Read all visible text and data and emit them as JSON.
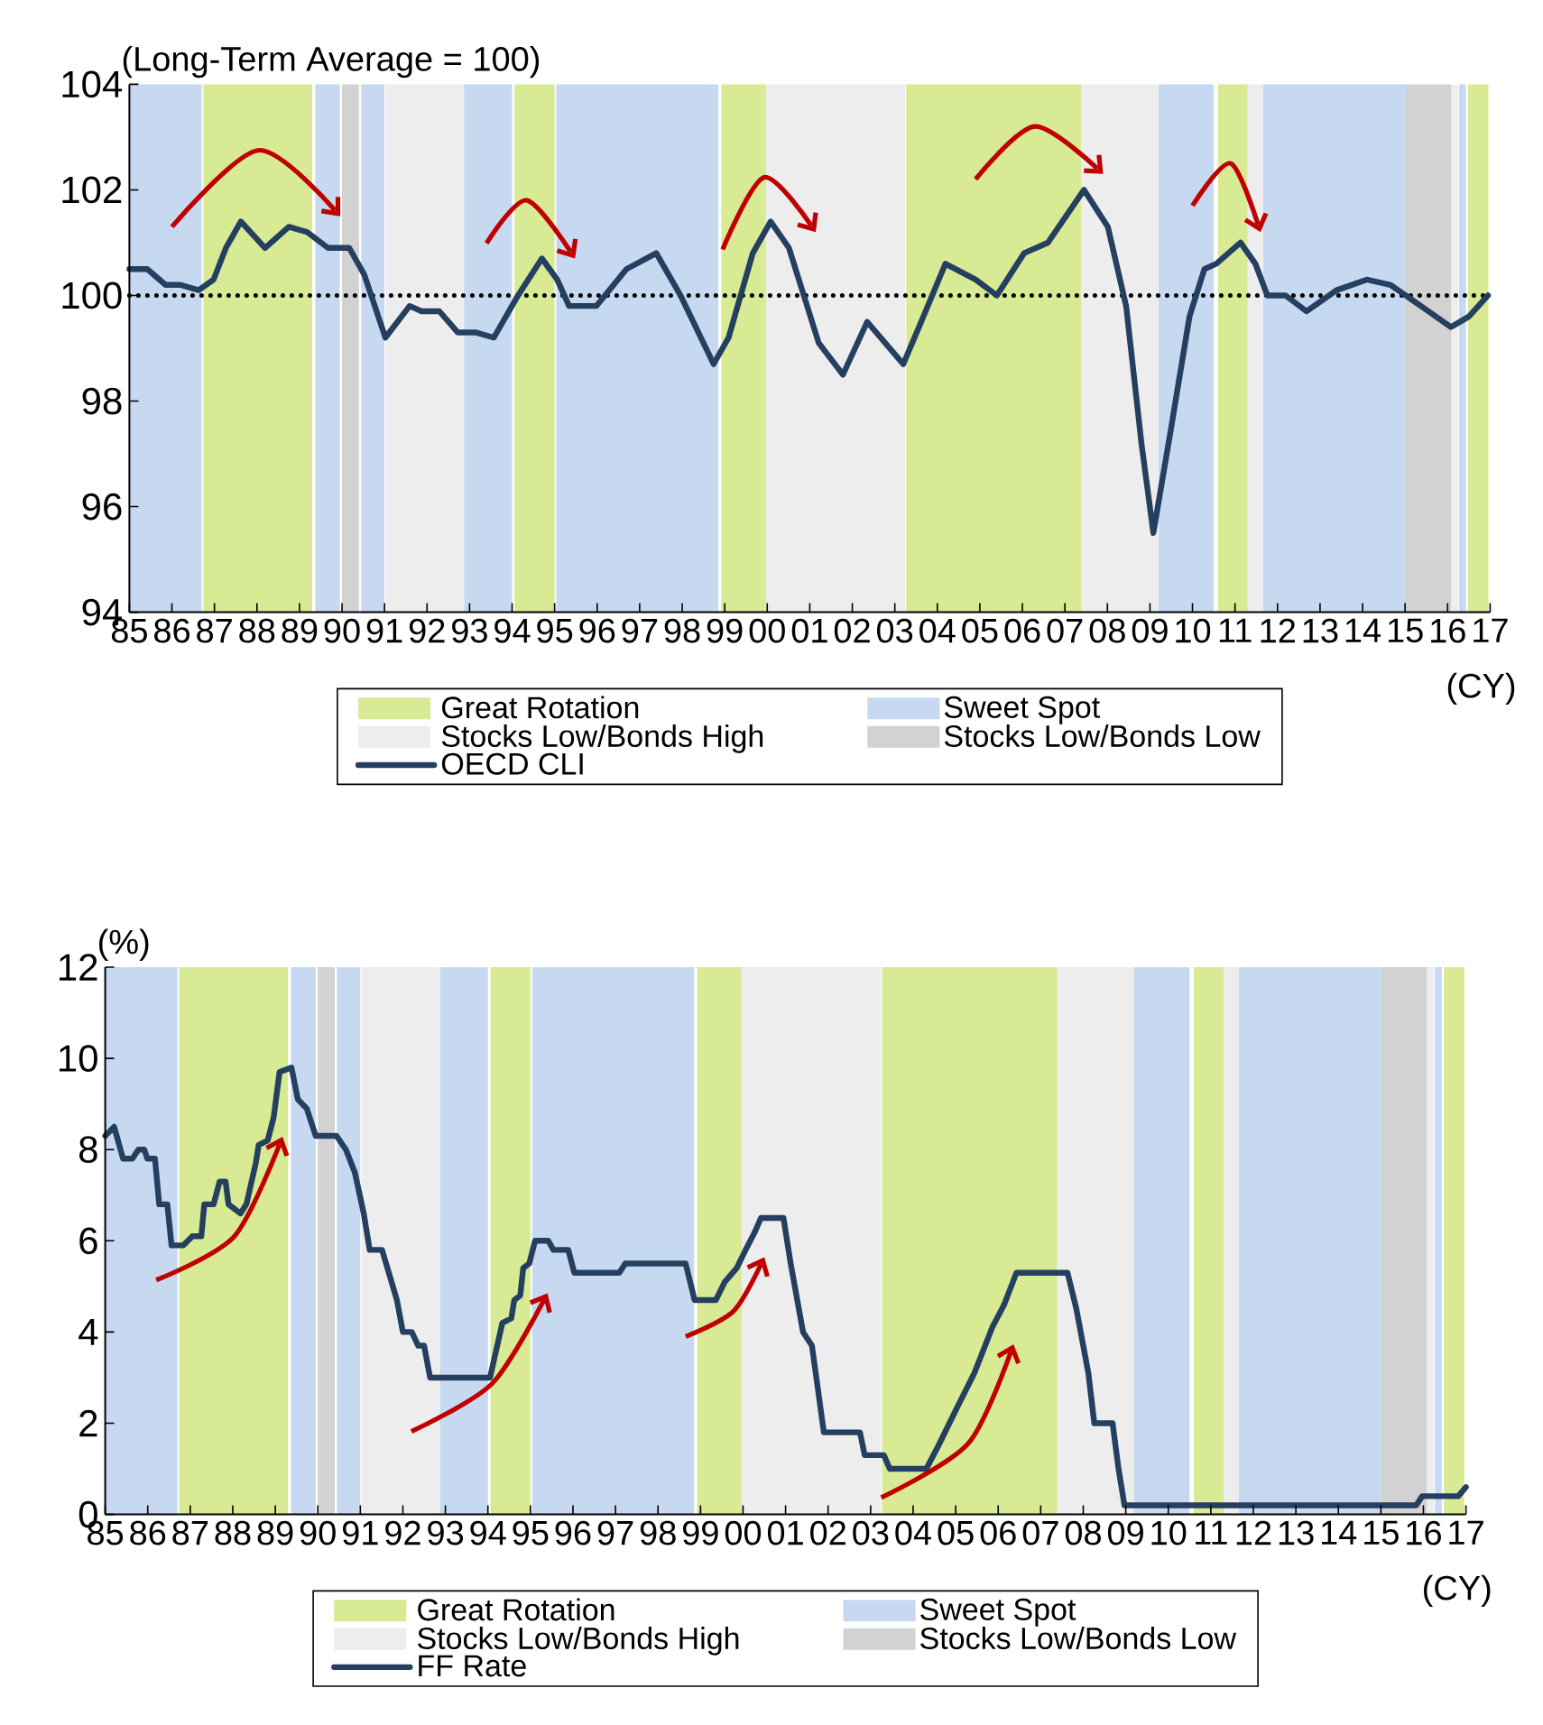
{
  "chart_data": [
    {
      "type": "line",
      "ylabel": "(Long-Term Average = 100)",
      "xlabel": "(CY)",
      "xlim": [
        1985,
        2017
      ],
      "xticks": [
        {
          "value": 1985,
          "label": "85"
        },
        {
          "value": 1986,
          "label": "86"
        },
        {
          "value": 1987,
          "label": "87"
        },
        {
          "value": 1988,
          "label": "88"
        },
        {
          "value": 1989,
          "label": "89"
        },
        {
          "value": 1990,
          "label": "90"
        },
        {
          "value": 1991,
          "label": "91"
        },
        {
          "value": 1992,
          "label": "92"
        },
        {
          "value": 1993,
          "label": "93"
        },
        {
          "value": 1994,
          "label": "94"
        },
        {
          "value": 1995,
          "label": "95"
        },
        {
          "value": 1996,
          "label": "96"
        },
        {
          "value": 1997,
          "label": "97"
        },
        {
          "value": 1998,
          "label": "98"
        },
        {
          "value": 1999,
          "label": "99"
        },
        {
          "value": 2000,
          "label": "00"
        },
        {
          "value": 2001,
          "label": "01"
        },
        {
          "value": 2002,
          "label": "02"
        },
        {
          "value": 2003,
          "label": "03"
        },
        {
          "value": 2004,
          "label": "04"
        },
        {
          "value": 2005,
          "label": "05"
        },
        {
          "value": 2006,
          "label": "06"
        },
        {
          "value": 2007,
          "label": "07"
        },
        {
          "value": 2008,
          "label": "08"
        },
        {
          "value": 2009,
          "label": "09"
        },
        {
          "value": 2010,
          "label": "10"
        },
        {
          "value": 2011,
          "label": "11"
        },
        {
          "value": 2012,
          "label": "12"
        },
        {
          "value": 2013,
          "label": "13"
        },
        {
          "value": 2014,
          "label": "14"
        },
        {
          "value": 2015,
          "label": "15"
        },
        {
          "value": 2016,
          "label": "16"
        },
        {
          "value": 2017,
          "label": "17"
        }
      ],
      "ylim": [
        94,
        104
      ],
      "yticks": [
        94,
        96,
        98,
        100,
        102,
        104
      ],
      "legend": "bottom",
      "series": [
        {
          "name": "OECD CLI",
          "color": "#243f60",
          "x": [
            1985.0,
            1985.42,
            1985.85,
            1986.2,
            1986.63,
            1986.98,
            1987.27,
            1987.62,
            1988.19,
            1988.75,
            1989.18,
            1989.67,
            1990.17,
            1990.52,
            1991.02,
            1991.59,
            1991.87,
            1992.29,
            1992.72,
            1993.14,
            1993.57,
            1994.14,
            1994.7,
            1995.06,
            1995.34,
            1995.98,
            1996.69,
            1997.39,
            1997.96,
            1998.74,
            1999.09,
            1999.66,
            2000.08,
            2000.51,
            2001.21,
            2001.78,
            2002.35,
            2003.2,
            2003.62,
            2004.19,
            2004.9,
            2005.4,
            2006.04,
            2006.6,
            2007.45,
            2008.01,
            2008.44,
            2008.8,
            2009.08,
            2009.5,
            2009.93,
            2010.28,
            2010.56,
            2011.13,
            2011.48,
            2011.76,
            2012.19,
            2012.68,
            2013.39,
            2014.1,
            2014.66,
            2015.37,
            2016.08,
            2016.5,
            2016.95
          ],
          "values": [
            100.5,
            100.5,
            100.2,
            100.2,
            100.1,
            100.3,
            100.9,
            101.4,
            100.9,
            101.3,
            101.2,
            100.9,
            100.9,
            100.4,
            99.2,
            99.8,
            99.7,
            99.7,
            99.3,
            99.3,
            99.2,
            100.0,
            100.7,
            100.3,
            99.8,
            99.8,
            100.5,
            100.8,
            100.0,
            98.7,
            99.2,
            100.8,
            101.4,
            100.9,
            99.1,
            98.5,
            99.5,
            98.7,
            99.5,
            100.6,
            100.3,
            100.0,
            100.8,
            101.0,
            102.0,
            101.3,
            99.8,
            97.2,
            95.5,
            97.5,
            99.6,
            100.5,
            100.6,
            101.0,
            100.6,
            100.0,
            100.0,
            99.7,
            100.1,
            100.3,
            100.2,
            99.8,
            99.4,
            99.6,
            100.0
          ]
        }
      ],
      "ref_lines": [
        {
          "axis": "y",
          "value": 100,
          "color": "#000000",
          "line_style": "dotted"
        }
      ],
      "bands": [
        {
          "axis": "x",
          "from": 1986.74,
          "to": 1989.3,
          "label": "Great Rotation",
          "color": "#d8ea94"
        },
        {
          "axis": "x",
          "from": 1994.06,
          "to": 1995.0,
          "color": "#d8ea94"
        },
        {
          "axis": "x",
          "from": 1998.92,
          "to": 1999.97,
          "color": "#d8ea94"
        },
        {
          "axis": "x",
          "from": 2003.27,
          "to": 2007.39,
          "color": "#d8ea94"
        },
        {
          "axis": "x",
          "from": 2010.6,
          "to": 2011.3,
          "color": "#d8ea94"
        },
        {
          "axis": "x",
          "from": 2016.48,
          "to": 2016.96,
          "color": "#d8ea94"
        },
        {
          "axis": "x",
          "from": 1985.0,
          "to": 1986.7,
          "label": "Sweet Spot",
          "color": "#c6d9f0"
        },
        {
          "axis": "x",
          "from": 1989.37,
          "to": 1989.95,
          "color": "#c6d9f0"
        },
        {
          "axis": "x",
          "from": 1990.45,
          "to": 1991.0,
          "color": "#c6d9f0"
        },
        {
          "axis": "x",
          "from": 1992.87,
          "to": 1994.0,
          "color": "#c6d9f0"
        },
        {
          "axis": "x",
          "from": 1995.04,
          "to": 1998.85,
          "color": "#c6d9f0"
        },
        {
          "axis": "x",
          "from": 2009.2,
          "to": 2010.5,
          "color": "#c6d9f0"
        },
        {
          "axis": "x",
          "from": 2011.66,
          "to": 2015.0,
          "color": "#c6d9f0"
        },
        {
          "axis": "x",
          "from": 2016.27,
          "to": 2016.43,
          "color": "#c6d9f0"
        },
        {
          "axis": "x",
          "from": 1991.03,
          "to": 1992.86,
          "label": "Stocks Low/Bonds High",
          "color": "#ededed"
        },
        {
          "axis": "x",
          "from": 1999.97,
          "to": 2003.25,
          "color": "#ededed"
        },
        {
          "axis": "x",
          "from": 2007.4,
          "to": 2009.2,
          "color": "#ededed"
        },
        {
          "axis": "x",
          "from": 2011.3,
          "to": 2011.66,
          "color": "#ededed"
        },
        {
          "axis": "x",
          "from": 2016.08,
          "to": 2016.25,
          "color": "#ededed"
        },
        {
          "axis": "x",
          "from": 1990.0,
          "to": 1990.4,
          "label": "Stocks Low/Bonds Low",
          "color": "#d2d2d2"
        },
        {
          "axis": "x",
          "from": 2015.0,
          "to": 2016.08,
          "color": "#d2d2d2"
        }
      ]
    },
    {
      "type": "line",
      "ylabel": "(%)",
      "xlabel": "(CY)",
      "xlim": [
        1985,
        2017
      ],
      "xticks": [
        {
          "value": 1985,
          "label": "85"
        },
        {
          "value": 1986,
          "label": "86"
        },
        {
          "value": 1987,
          "label": "87"
        },
        {
          "value": 1988,
          "label": "88"
        },
        {
          "value": 1989,
          "label": "89"
        },
        {
          "value": 1990,
          "label": "90"
        },
        {
          "value": 1991,
          "label": "91"
        },
        {
          "value": 1992,
          "label": "92"
        },
        {
          "value": 1993,
          "label": "93"
        },
        {
          "value": 1994,
          "label": "94"
        },
        {
          "value": 1995,
          "label": "95"
        },
        {
          "value": 1996,
          "label": "96"
        },
        {
          "value": 1997,
          "label": "97"
        },
        {
          "value": 1998,
          "label": "98"
        },
        {
          "value": 1999,
          "label": "99"
        },
        {
          "value": 2000,
          "label": "00"
        },
        {
          "value": 2001,
          "label": "01"
        },
        {
          "value": 2002,
          "label": "02"
        },
        {
          "value": 2003,
          "label": "03"
        },
        {
          "value": 2004,
          "label": "04"
        },
        {
          "value": 2005,
          "label": "05"
        },
        {
          "value": 2006,
          "label": "06"
        },
        {
          "value": 2007,
          "label": "07"
        },
        {
          "value": 2008,
          "label": "08"
        },
        {
          "value": 2009,
          "label": "09"
        },
        {
          "value": 2010,
          "label": "10"
        },
        {
          "value": 2011,
          "label": "11"
        },
        {
          "value": 2012,
          "label": "12"
        },
        {
          "value": 2013,
          "label": "13"
        },
        {
          "value": 2014,
          "label": "14"
        },
        {
          "value": 2015,
          "label": "15"
        },
        {
          "value": 2016,
          "label": "16"
        },
        {
          "value": 2017,
          "label": "17"
        }
      ],
      "ylim": [
        0,
        12
      ],
      "yticks": [
        0,
        2,
        4,
        6,
        8,
        10,
        12
      ],
      "legend": "bottom",
      "series": [
        {
          "name": "FF Rate",
          "color": "#243f60",
          "x": [
            1985.0,
            1985.21,
            1985.42,
            1985.64,
            1985.78,
            1985.92,
            1985.99,
            1986.17,
            1986.27,
            1986.46,
            1986.56,
            1986.84,
            1987.05,
            1987.26,
            1987.33,
            1987.55,
            1987.69,
            1987.83,
            1987.9,
            1988.18,
            1988.32,
            1988.54,
            1988.61,
            1988.82,
            1988.96,
            1989.1,
            1989.38,
            1989.53,
            1989.74,
            1989.95,
            1990.44,
            1990.66,
            1990.87,
            1991.08,
            1991.22,
            1991.51,
            1991.86,
            1992.0,
            1992.21,
            1992.36,
            1992.5,
            1992.64,
            1994.05,
            1994.34,
            1994.55,
            1994.62,
            1994.76,
            1994.83,
            1994.97,
            1995.11,
            1995.42,
            1995.54,
            1995.89,
            1996.03,
            1997.09,
            1997.23,
            1998.65,
            1998.86,
            1999.36,
            1999.57,
            1999.85,
            2000.06,
            2000.28,
            2000.42,
            2000.95,
            2001.12,
            2001.41,
            2001.62,
            2001.9,
            2002.75,
            2002.86,
            2003.31,
            2003.45,
            2004.31,
            2004.59,
            2005.01,
            2005.44,
            2005.86,
            2006.14,
            2006.43,
            2007.63,
            2007.84,
            2008.12,
            2008.26,
            2008.69,
            2008.83,
            2008.97,
            2015.83,
            2015.97,
            2016.82,
            2017.0
          ],
          "values": [
            8.3,
            8.5,
            7.8,
            7.8,
            8.0,
            8.0,
            7.8,
            7.8,
            6.8,
            6.8,
            5.9,
            5.9,
            6.1,
            6.1,
            6.8,
            6.8,
            7.3,
            7.3,
            6.8,
            6.6,
            6.8,
            7.7,
            8.1,
            8.2,
            8.7,
            9.7,
            9.8,
            9.1,
            8.9,
            8.3,
            8.3,
            8.0,
            7.5,
            6.6,
            5.8,
            5.8,
            4.7,
            4.0,
            4.0,
            3.7,
            3.7,
            3.0,
            3.0,
            4.2,
            4.3,
            4.7,
            4.8,
            5.4,
            5.5,
            6.0,
            6.0,
            5.8,
            5.8,
            5.3,
            5.3,
            5.5,
            5.5,
            4.7,
            4.7,
            5.1,
            5.4,
            5.8,
            6.2,
            6.5,
            6.5,
            5.5,
            4.0,
            3.7,
            1.8,
            1.8,
            1.3,
            1.3,
            1.0,
            1.0,
            1.5,
            2.3,
            3.1,
            4.1,
            4.6,
            5.3,
            5.3,
            4.5,
            3.1,
            2.0,
            2.0,
            1.0,
            0.2,
            0.2,
            0.4,
            0.4,
            0.6
          ]
        }
      ],
      "bands": [
        {
          "axis": "x",
          "from": 1986.74,
          "to": 1989.3,
          "label": "Great Rotation",
          "color": "#d8ea94"
        },
        {
          "axis": "x",
          "from": 1994.06,
          "to": 1995.0,
          "color": "#d8ea94"
        },
        {
          "axis": "x",
          "from": 1998.92,
          "to": 1999.97,
          "color": "#d8ea94"
        },
        {
          "axis": "x",
          "from": 2003.27,
          "to": 2007.39,
          "color": "#d8ea94"
        },
        {
          "axis": "x",
          "from": 2010.6,
          "to": 2011.3,
          "color": "#d8ea94"
        },
        {
          "axis": "x",
          "from": 2016.48,
          "to": 2016.96,
          "color": "#d8ea94"
        },
        {
          "axis": "x",
          "from": 1985.0,
          "to": 1986.7,
          "label": "Sweet Spot",
          "color": "#c6d9f0"
        },
        {
          "axis": "x",
          "from": 1989.37,
          "to": 1989.95,
          "color": "#c6d9f0"
        },
        {
          "axis": "x",
          "from": 1990.45,
          "to": 1991.0,
          "color": "#c6d9f0"
        },
        {
          "axis": "x",
          "from": 1992.87,
          "to": 1994.0,
          "color": "#c6d9f0"
        },
        {
          "axis": "x",
          "from": 1995.04,
          "to": 1998.85,
          "color": "#c6d9f0"
        },
        {
          "axis": "x",
          "from": 2009.2,
          "to": 2010.5,
          "color": "#c6d9f0"
        },
        {
          "axis": "x",
          "from": 2011.66,
          "to": 2015.0,
          "color": "#c6d9f0"
        },
        {
          "axis": "x",
          "from": 2016.27,
          "to": 2016.43,
          "color": "#c6d9f0"
        },
        {
          "axis": "x",
          "from": 1991.03,
          "to": 1992.86,
          "label": "Stocks Low/Bonds High",
          "color": "#ededed"
        },
        {
          "axis": "x",
          "from": 1999.97,
          "to": 2003.25,
          "color": "#ededed"
        },
        {
          "axis": "x",
          "from": 2007.4,
          "to": 2009.2,
          "color": "#ededed"
        },
        {
          "axis": "x",
          "from": 2011.3,
          "to": 2011.66,
          "color": "#ededed"
        },
        {
          "axis": "x",
          "from": 2016.08,
          "to": 2016.25,
          "color": "#ededed"
        },
        {
          "axis": "x",
          "from": 1990.0,
          "to": 1990.4,
          "label": "Stocks Low/Bonds Low",
          "color": "#d2d2d2"
        },
        {
          "axis": "x",
          "from": 2015.0,
          "to": 2016.08,
          "color": "#d2d2d2"
        }
      ]
    }
  ]
}
